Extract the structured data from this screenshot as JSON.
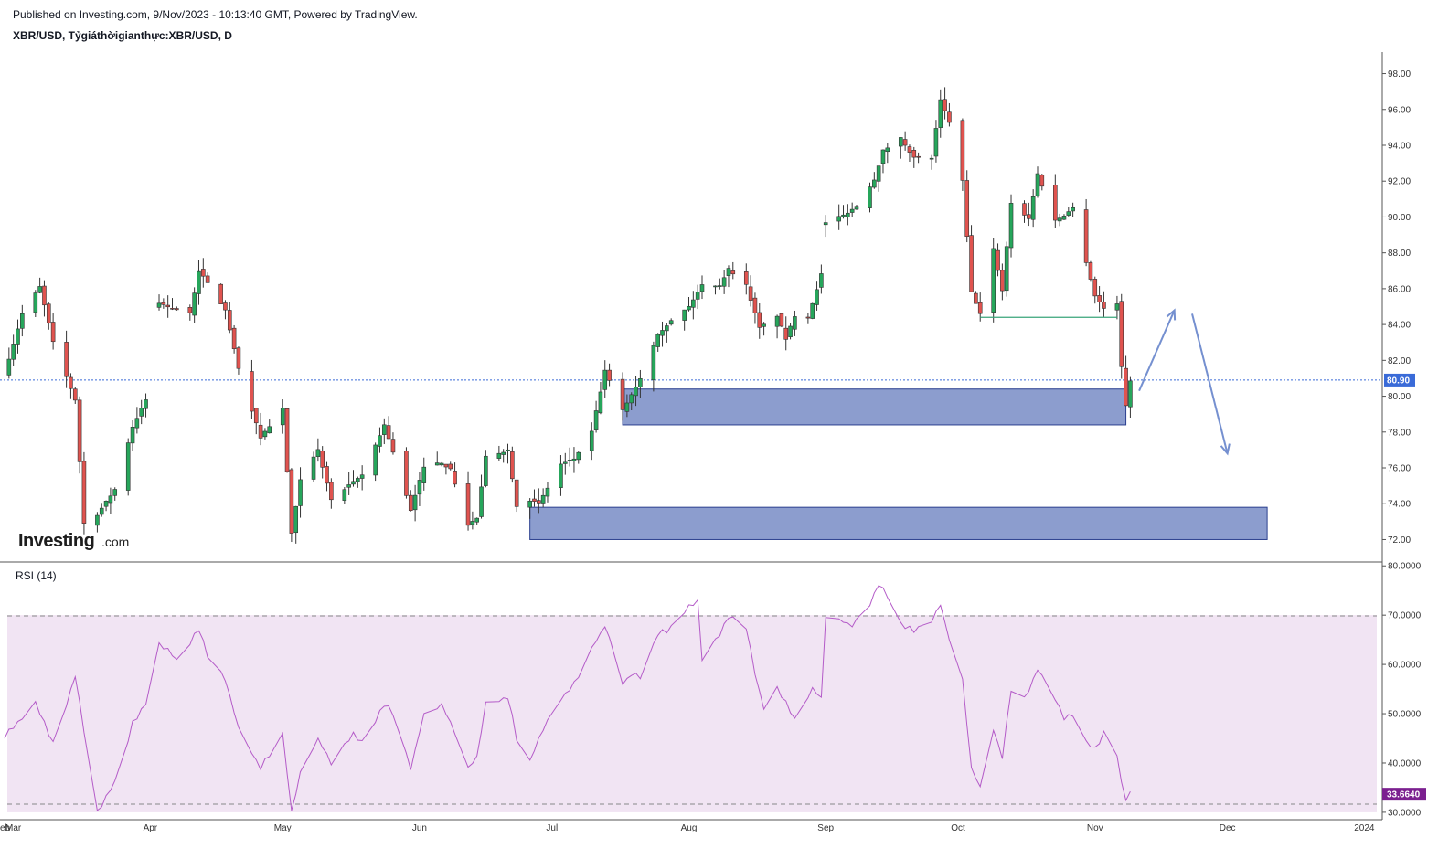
{
  "header": {
    "published": "Published on Investing.com, 9/Nov/2023 - 10:13:40 GMT, Powered by TradingView.",
    "symbol_line": "XBR/USD, Tỷgiáthờigianthực:XBR/USD, D"
  },
  "logo": {
    "main": "Investing",
    "domain": ".com"
  },
  "colors": {
    "up": "#26a65b",
    "down": "#e0534f",
    "wick": "#333333",
    "zone_fill": "#8c9dce",
    "zone_stroke": "#2b3f8f",
    "price_line": "#3a6bd8",
    "rsi_line": "#b45bc8",
    "rsi_band": "#f1e4f3",
    "arrow": "#7590d0",
    "support_line": "#3aa57a",
    "rsi_tag": "#7b1f8f"
  },
  "chart_data": [
    {
      "type": "candlestick",
      "title": "XBR/USD, Tỷgiáthờigianthực:XBR/USD, D",
      "xlabel": "",
      "ylabel": "",
      "x_ticks": [
        "eb",
        "Mar",
        "Apr",
        "May",
        "Jun",
        "Jul",
        "Aug",
        "Sep",
        "Oct",
        "Nov",
        "Dec",
        "2024"
      ],
      "y_ticks": [
        "98.00",
        "96.00",
        "94.00",
        "92.00",
        "90.00",
        "88.00",
        "86.00",
        "84.00",
        "82.00",
        "80.00",
        "78.00",
        "76.00",
        "74.00",
        "72.00"
      ],
      "ylim": [
        70.8,
        99.2
      ],
      "date_range": [
        "2023-02-27",
        "2024-01-03"
      ],
      "last_price": "80.90",
      "last_price_value": 80.9,
      "anchor_points": [
        [
          "2023-02-27",
          81.3
        ],
        [
          "2023-03-03",
          84.6
        ],
        [
          "2023-03-07",
          86.1
        ],
        [
          "2023-03-10",
          83.0
        ],
        [
          "2023-03-15",
          79.8
        ],
        [
          "2023-03-17",
          72.9
        ],
        [
          "2023-03-20",
          73.4
        ],
        [
          "2023-03-24",
          74.8
        ],
        [
          "2023-03-28",
          78.3
        ],
        [
          "2023-03-31",
          79.8
        ],
        [
          "2023-04-03",
          85.2
        ],
        [
          "2023-04-05",
          85.0
        ],
        [
          "2023-04-10",
          84.6
        ],
        [
          "2023-04-12",
          87.0
        ],
        [
          "2023-04-14",
          86.3
        ],
        [
          "2023-04-18",
          84.8
        ],
        [
          "2023-04-21",
          81.5
        ],
        [
          "2023-04-26",
          77.7
        ],
        [
          "2023-05-01",
          79.3
        ],
        [
          "2023-05-03",
          72.3
        ],
        [
          "2023-05-05",
          75.3
        ],
        [
          "2023-05-09",
          77.0
        ],
        [
          "2023-05-12",
          74.2
        ],
        [
          "2023-05-16",
          75.0
        ],
        [
          "2023-05-19",
          75.6
        ],
        [
          "2023-05-24",
          78.4
        ],
        [
          "2023-05-26",
          76.9
        ],
        [
          "2023-05-30",
          73.6
        ],
        [
          "2023-06-02",
          76.1
        ],
        [
          "2023-06-06",
          76.3
        ],
        [
          "2023-06-08",
          75.9
        ],
        [
          "2023-06-12",
          72.8
        ],
        [
          "2023-06-14",
          73.2
        ],
        [
          "2023-06-16",
          76.6
        ],
        [
          "2023-06-21",
          77.0
        ],
        [
          "2023-06-23",
          73.9
        ],
        [
          "2023-06-26",
          74.2
        ],
        [
          "2023-06-28",
          74.0
        ],
        [
          "2023-07-03",
          76.2
        ],
        [
          "2023-07-06",
          76.5
        ],
        [
          "2023-07-10",
          78.0
        ],
        [
          "2023-07-13",
          81.4
        ],
        [
          "2023-07-17",
          79.2
        ],
        [
          "2023-07-21",
          81.0
        ],
        [
          "2023-07-25",
          83.5
        ],
        [
          "2023-07-28",
          84.2
        ],
        [
          "2023-08-01",
          85.0
        ],
        [
          "2023-08-04",
          86.2
        ],
        [
          "2023-08-08",
          86.2
        ],
        [
          "2023-08-10",
          87.1
        ],
        [
          "2023-08-14",
          86.2
        ],
        [
          "2023-08-17",
          83.8
        ],
        [
          "2023-08-21",
          84.5
        ],
        [
          "2023-08-23",
          83.2
        ],
        [
          "2023-08-25",
          84.5
        ],
        [
          "2023-08-28",
          84.4
        ],
        [
          "2023-08-31",
          86.8
        ],
        [
          "2023-09-01",
          89.7
        ],
        [
          "2023-09-05",
          90.1
        ],
        [
          "2023-09-08",
          90.6
        ],
        [
          "2023-09-12",
          92.1
        ],
        [
          "2023-09-14",
          93.7
        ],
        [
          "2023-09-18",
          94.4
        ],
        [
          "2023-09-21",
          93.3
        ],
        [
          "2023-09-25",
          93.3
        ],
        [
          "2023-09-27",
          96.5
        ],
        [
          "2023-09-29",
          95.3
        ],
        [
          "2023-10-02",
          92.0
        ],
        [
          "2023-10-04",
          85.8
        ],
        [
          "2023-10-06",
          84.6
        ],
        [
          "2023-10-09",
          88.2
        ],
        [
          "2023-10-11",
          85.9
        ],
        [
          "2023-10-13",
          90.8
        ],
        [
          "2023-10-17",
          89.9
        ],
        [
          "2023-10-19",
          92.4
        ],
        [
          "2023-10-23",
          89.8
        ],
        [
          "2023-10-25",
          90.1
        ],
        [
          "2023-10-27",
          90.5
        ],
        [
          "2023-10-30",
          87.5
        ],
        [
          "2023-11-01",
          85.6
        ],
        [
          "2023-11-03",
          84.9
        ],
        [
          "2023-11-06",
          85.2
        ],
        [
          "2023-11-07",
          81.6
        ],
        [
          "2023-11-08",
          79.5
        ],
        [
          "2023-11-09",
          80.9
        ]
      ],
      "gaps": [
        [
          "2023-03-31",
          "2023-04-03"
        ],
        [
          "2023-08-31",
          "2023-09-01"
        ]
      ],
      "zones": [
        {
          "from": "2023-07-17",
          "to": "2023-11-08",
          "low": 78.4,
          "high": 80.4
        },
        {
          "from": "2023-06-26",
          "to": "2023-12-10",
          "low": 72.0,
          "high": 73.8
        }
      ],
      "support_line": {
        "from": "2023-10-06",
        "to": "2023-11-06",
        "value": 84.4
      },
      "arrows": [
        {
          "from": [
            "2023-11-11",
            80.3
          ],
          "to": [
            "2023-11-19",
            84.8
          ]
        },
        {
          "from": [
            "2023-11-23",
            84.6
          ],
          "to": [
            "2023-12-01",
            76.8
          ]
        }
      ]
    },
    {
      "type": "line",
      "title": "RSI (14)",
      "series": [
        {
          "name": "RSI (14)",
          "anchor_points": [
            [
              "2023-02-27",
              45.5
            ],
            [
              "2023-03-06",
              52.0
            ],
            [
              "2023-03-10",
              44.0
            ],
            [
              "2023-03-15",
              57.5
            ],
            [
              "2023-03-20",
              30.0
            ],
            [
              "2023-03-24",
              36.0
            ],
            [
              "2023-03-28",
              48.0
            ],
            [
              "2023-03-31",
              52.0
            ],
            [
              "2023-04-03",
              64.0
            ],
            [
              "2023-04-05",
              63.0
            ],
            [
              "2023-04-07",
              60.5
            ],
            [
              "2023-04-12",
              67.0
            ],
            [
              "2023-04-14",
              62.0
            ],
            [
              "2023-04-18",
              57.0
            ],
            [
              "2023-04-21",
              47.0
            ],
            [
              "2023-04-26",
              39.0
            ],
            [
              "2023-05-01",
              46.0
            ],
            [
              "2023-05-03",
              30.0
            ],
            [
              "2023-05-05",
              38.0
            ],
            [
              "2023-05-09",
              45.0
            ],
            [
              "2023-05-12",
              40.0
            ],
            [
              "2023-05-17",
              46.0
            ],
            [
              "2023-05-19",
              44.0
            ],
            [
              "2023-05-24",
              52.0
            ],
            [
              "2023-05-26",
              50.0
            ],
            [
              "2023-05-30",
              39.0
            ],
            [
              "2023-06-02",
              50.0
            ],
            [
              "2023-06-06",
              52.0
            ],
            [
              "2023-06-09",
              46.0
            ],
            [
              "2023-06-12",
              39.0
            ],
            [
              "2023-06-14",
              41.0
            ],
            [
              "2023-06-16",
              52.0
            ],
            [
              "2023-06-21",
              53.5
            ],
            [
              "2023-06-23",
              45.0
            ],
            [
              "2023-06-26",
              40.0
            ],
            [
              "2023-06-28",
              45.0
            ],
            [
              "2023-07-03",
              53.0
            ],
            [
              "2023-07-06",
              56.0
            ],
            [
              "2023-07-10",
              63.0
            ],
            [
              "2023-07-13",
              68.0
            ],
            [
              "2023-07-17",
              56.0
            ],
            [
              "2023-07-19",
              58.0
            ],
            [
              "2023-07-21",
              57.5
            ],
            [
              "2023-07-25",
              66.0
            ],
            [
              "2023-07-28",
              67.5
            ],
            [
              "2023-08-01",
              72.0
            ],
            [
              "2023-08-03",
              73.0
            ],
            [
              "2023-08-04",
              61.0
            ],
            [
              "2023-08-08",
              66.0
            ],
            [
              "2023-08-10",
              70.0
            ],
            [
              "2023-08-14",
              67.5
            ],
            [
              "2023-08-16",
              58.0
            ],
            [
              "2023-08-18",
              51.0
            ],
            [
              "2023-08-21",
              55.0
            ],
            [
              "2023-08-23",
              52.0
            ],
            [
              "2023-08-25",
              49.0
            ],
            [
              "2023-08-29",
              55.0
            ],
            [
              "2023-08-31",
              53.0
            ],
            [
              "2023-09-01",
              70.0
            ],
            [
              "2023-09-04",
              69.0
            ],
            [
              "2023-09-07",
              68.0
            ],
            [
              "2023-09-11",
              72.0
            ],
            [
              "2023-09-13",
              76.0
            ],
            [
              "2023-09-15",
              74.0
            ],
            [
              "2023-09-18",
              68.0
            ],
            [
              "2023-09-21",
              67.0
            ],
            [
              "2023-09-25",
              69.0
            ],
            [
              "2023-09-27",
              72.0
            ],
            [
              "2023-09-29",
              65.0
            ],
            [
              "2023-10-02",
              57.0
            ],
            [
              "2023-10-04",
              39.0
            ],
            [
              "2023-10-06",
              35.0
            ],
            [
              "2023-10-09",
              47.0
            ],
            [
              "2023-10-11",
              41.0
            ],
            [
              "2023-10-13",
              55.0
            ],
            [
              "2023-10-16",
              53.0
            ],
            [
              "2023-10-19",
              59.0
            ],
            [
              "2023-10-23",
              53.0
            ],
            [
              "2023-10-25",
              49.0
            ],
            [
              "2023-10-27",
              50.0
            ],
            [
              "2023-10-30",
              44.0
            ],
            [
              "2023-11-01",
              43.0
            ],
            [
              "2023-11-03",
              46.0
            ],
            [
              "2023-11-06",
              42.0
            ],
            [
              "2023-11-07",
              36.0
            ],
            [
              "2023-11-08",
              33.0
            ],
            [
              "2023-11-09",
              33.66
            ]
          ]
        }
      ],
      "ylim": [
        28.5,
        80.6
      ],
      "y_ticks": [
        "80.0000",
        "70.0000",
        "60.0000",
        "50.0000",
        "40.0000",
        "30.0000"
      ],
      "band": [
        30,
        70
      ],
      "last_value": "33.6640",
      "last_value_value": 33.664
    }
  ]
}
